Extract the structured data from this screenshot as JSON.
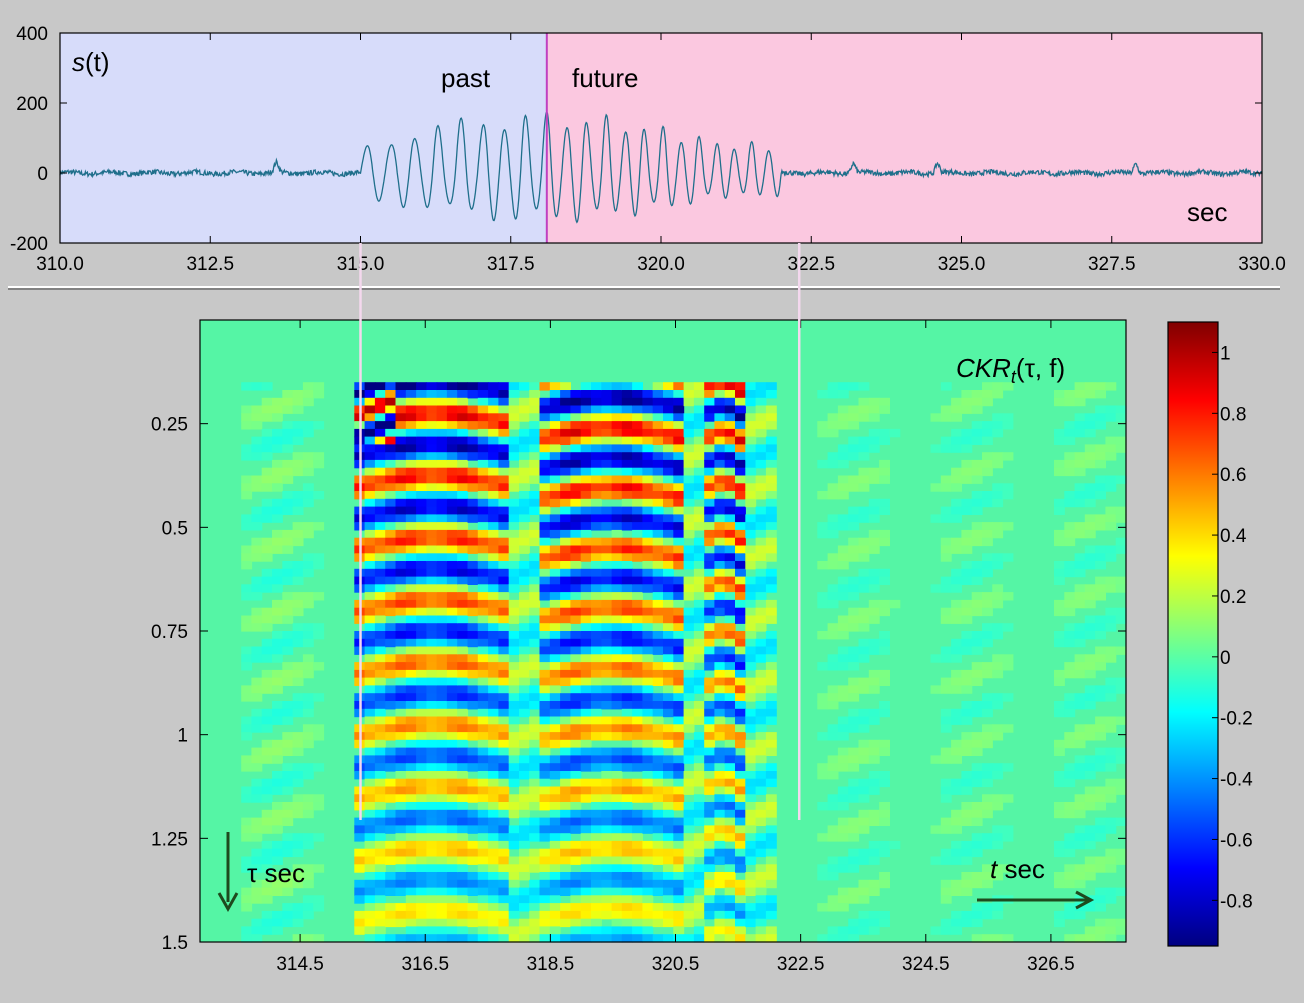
{
  "colors": {
    "background": "#c8c8c8",
    "past_region": "#d7dcfa",
    "future_region": "#fbc8e0",
    "signal": "#1f6f8b",
    "divider": "#c040c0",
    "guide": "#f4d8ee",
    "arrow": "#1e4a1e",
    "heatmap_baseline": "#55f5a5"
  },
  "chart_data": [
    {
      "type": "line",
      "name": "signal",
      "title": "s(t)",
      "title_main": "s",
      "title_arg": "(t)",
      "xlabel": "sec",
      "xlim": [
        310.0,
        330.0
      ],
      "ylim": [
        -200,
        400
      ],
      "x_ticks": [
        "310.0",
        "312.5",
        "315.0",
        "317.5",
        "320.0",
        "322.5",
        "325.0",
        "327.5",
        "330.0"
      ],
      "y_ticks": [
        "400",
        "200",
        "0",
        "-200"
      ],
      "divider_x": 318.1,
      "regions": [
        {
          "label": "past",
          "from": 310.0,
          "to": 318.1
        },
        {
          "label": "future",
          "from": 318.1,
          "to": 330.0
        }
      ],
      "burst": {
        "start": 315.0,
        "end": 322.0,
        "amplitude_max": 200,
        "amplitude_min": -190
      },
      "guides_x": [
        315.0,
        322.3
      ],
      "grid": false
    },
    {
      "type": "heatmap",
      "name": "CKR",
      "title_main": "CKR",
      "title_sub": "t",
      "title_args": "(τ, f)",
      "x_axis_label": "t sec",
      "x_axis_italic": "t",
      "x_axis_rest": " sec",
      "y_axis_label": "τ sec",
      "x_ticks": [
        "314.5",
        "316.5",
        "318.5",
        "320.5",
        "322.5",
        "324.5",
        "326.5"
      ],
      "y_ticks": [
        "0.25",
        "0.5",
        "0.75",
        "1",
        "1.25",
        "1.5"
      ],
      "xlim": [
        312.9,
        327.7
      ],
      "ylim": [
        0.0,
        1.5
      ],
      "active_x_range": [
        315.4,
        322.1
      ],
      "active_tau_start": 0.15,
      "blocks": [
        {
          "x_from": 315.4,
          "x_to": 317.9,
          "period": 0.15,
          "phase": 0.3
        },
        {
          "x_from": 318.3,
          "x_to": 320.7,
          "period": 0.145,
          "phase": 0.0
        },
        {
          "x_from": 320.9,
          "x_to": 321.6,
          "period": 0.12,
          "phase": 0.5
        }
      ],
      "colorbar": {
        "min": -0.95,
        "max": 1.1,
        "ticks": [
          "1",
          "0.8",
          "0.6",
          "0.4",
          "0.2",
          "0",
          "-0.2",
          "-0.4",
          "-0.6",
          "-0.8"
        ],
        "colormap": "jet"
      }
    }
  ]
}
